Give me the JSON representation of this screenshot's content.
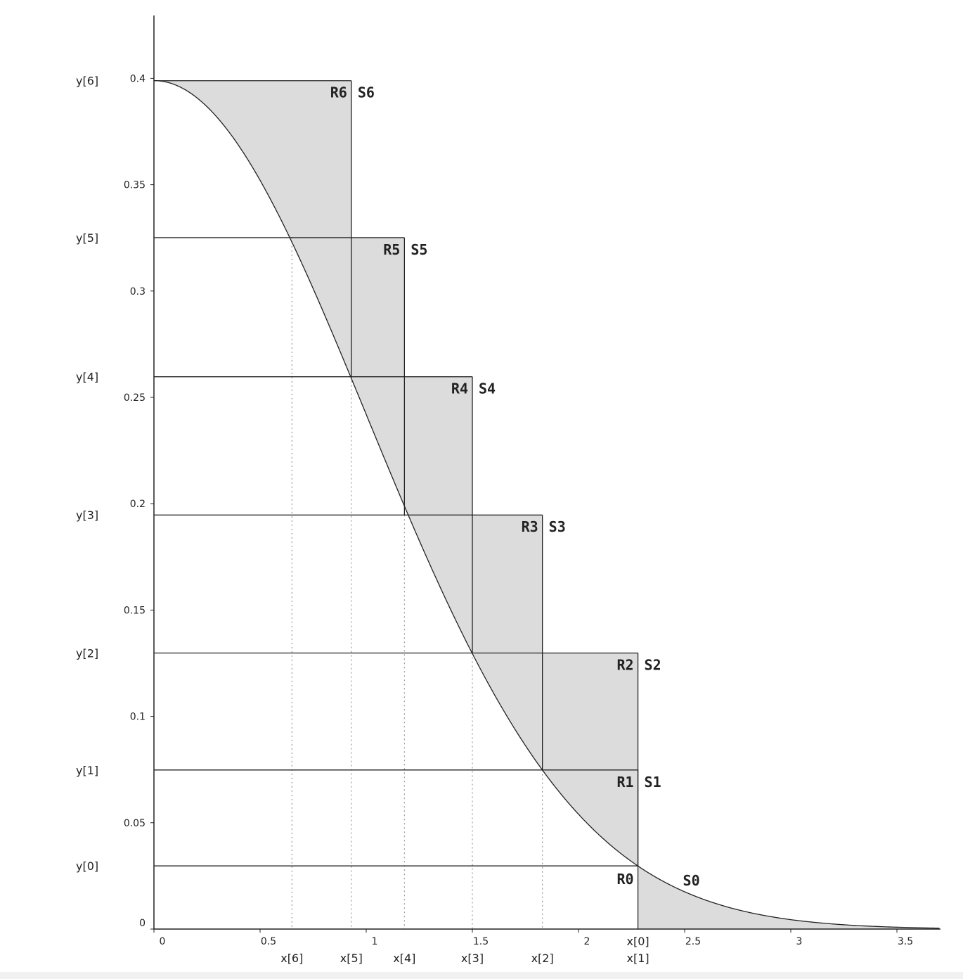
{
  "chart_data": {
    "type": "line",
    "curve": "standard normal density (Ziggurat layers)",
    "xlim": [
      0,
      3.7
    ],
    "ylim": [
      0,
      0.43
    ],
    "x_ticks": [
      "0",
      "0.5",
      "1",
      "1.5",
      "2",
      "2.5",
      "3",
      "3.5"
    ],
    "x_tick_values": [
      0,
      0.5,
      1,
      1.5,
      2,
      2.5,
      3,
      3.5
    ],
    "y_ticks": [
      "0",
      "0.05",
      "0.1",
      "0.15",
      "0.2",
      "0.25",
      "0.3",
      "0.35",
      "0.4"
    ],
    "y_tick_values": [
      0,
      0.05,
      0.1,
      0.15,
      0.2,
      0.25,
      0.3,
      0.35,
      0.4
    ],
    "layers": [
      {
        "x_name": "x[0]",
        "y_name": "y[0]",
        "x": 2.28,
        "y": 0.0297,
        "region": "R0",
        "tail": "S0"
      },
      {
        "x_name": "x[1]",
        "y_name": "y[1]",
        "x": 2.28,
        "y": 0.0748,
        "region": "R1",
        "tail": "S1"
      },
      {
        "x_name": "x[2]",
        "y_name": "y[2]",
        "x": 1.83,
        "y": 0.1298,
        "region": "R2",
        "tail": "S2"
      },
      {
        "x_name": "x[3]",
        "y_name": "y[3]",
        "x": 1.5,
        "y": 0.1947,
        "region": "R3",
        "tail": "S3"
      },
      {
        "x_name": "x[4]",
        "y_name": "y[4]",
        "x": 1.18,
        "y": 0.2597,
        "region": "R4",
        "tail": "S4"
      },
      {
        "x_name": "x[5]",
        "y_name": "y[5]",
        "x": 0.93,
        "y": 0.3251,
        "region": "R5",
        "tail": "S5"
      },
      {
        "x_name": "x[6]",
        "y_name": "y[6]",
        "x": 0.65,
        "y": 0.3989,
        "region": "R6",
        "tail": "S6"
      }
    ],
    "fill_color": "#dcdcdc",
    "line_color": "#222222",
    "grid": false
  }
}
